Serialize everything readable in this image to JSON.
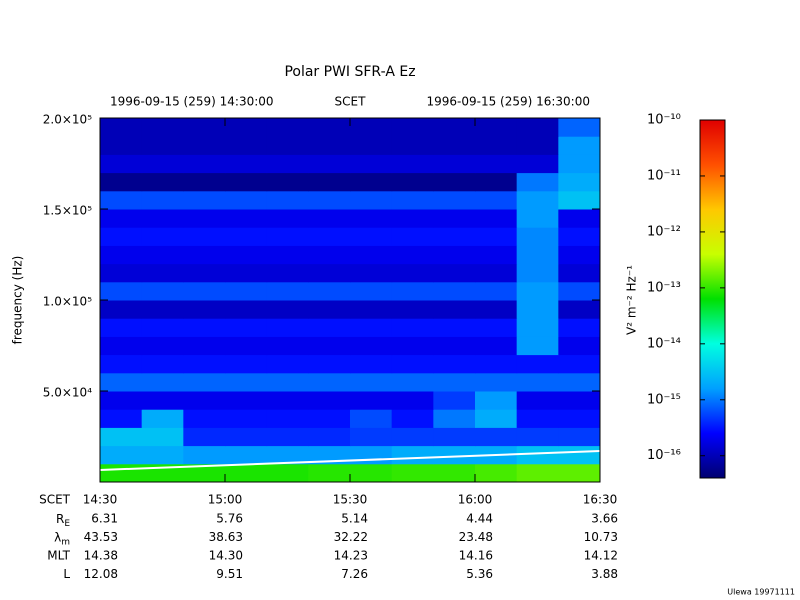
{
  "chart_data": {
    "type": "spectrogram",
    "title": "Polar PWI SFR-A Ez",
    "header": {
      "start": "1996-09-15 (259) 14:30:00",
      "scale": "SCET",
      "end": "1996-09-15 (259) 16:30:00"
    },
    "ylabel": "frequency (Hz)",
    "xlim": [
      "14:30",
      "16:30"
    ],
    "xticks": [
      "14:30",
      "15:00",
      "15:30",
      "16:00",
      "16:30"
    ],
    "ylim": [
      0,
      200000
    ],
    "yticks": [
      {
        "value": 50000,
        "label": "5.0×10⁴"
      },
      {
        "value": 100000,
        "label": "1.0×10⁵"
      },
      {
        "value": 150000,
        "label": "1.5×10⁵"
      },
      {
        "value": 200000,
        "label": "2.0×10⁵"
      }
    ],
    "z": [
      [
        8e-14,
        8e-14,
        8e-14,
        8e-14,
        8e-14,
        9e-14,
        9e-14,
        1e-13,
        1e-13,
        1.2e-13,
        1.5e-13,
        1.5e-13
      ],
      [
        2e-15,
        2e-15,
        1.5e-15,
        1.5e-15,
        1.5e-15,
        1.5e-15,
        1.5e-15,
        2e-15,
        2e-15,
        2e-15,
        3e-15,
        3e-15
      ],
      [
        3e-15,
        3e-15,
        4e-16,
        4e-16,
        4e-16,
        4e-16,
        5e-16,
        5e-16,
        5e-16,
        5e-16,
        5e-16,
        5e-16
      ],
      [
        3e-16,
        2e-15,
        3e-16,
        3e-16,
        3e-16,
        3e-16,
        6e-16,
        3e-16,
        1e-15,
        2e-15,
        3e-16,
        3e-16
      ],
      [
        2e-16,
        2e-16,
        2e-16,
        2e-16,
        2e-16,
        2e-16,
        2e-16,
        2e-16,
        5e-16,
        1.5e-15,
        2e-16,
        2e-16
      ],
      [
        8e-16,
        8e-16,
        8e-16,
        8e-16,
        8e-16,
        8e-16,
        8e-16,
        8e-16,
        8e-16,
        8e-16,
        8e-16,
        8e-16
      ],
      [
        3e-16,
        3e-16,
        3e-16,
        3e-16,
        3e-16,
        3e-16,
        3e-16,
        3e-16,
        3e-16,
        3e-16,
        3e-16,
        3e-16
      ],
      [
        2e-16,
        2e-16,
        2e-16,
        2e-16,
        2e-16,
        2e-16,
        2e-16,
        2e-16,
        2e-16,
        2e-16,
        1.5e-15,
        2e-16
      ],
      [
        3e-16,
        3e-16,
        3e-16,
        3e-16,
        3e-16,
        3e-16,
        3e-16,
        3e-16,
        3e-16,
        3e-16,
        1.5e-15,
        3e-16
      ],
      [
        1.2e-16,
        1.2e-16,
        1.2e-16,
        1.2e-16,
        1.2e-16,
        1.2e-16,
        1.2e-16,
        1.2e-16,
        1.2e-16,
        1.2e-16,
        1.5e-15,
        1.2e-16
      ],
      [
        6e-16,
        6e-16,
        6e-16,
        6e-16,
        6e-16,
        6e-16,
        6e-16,
        6e-16,
        6e-16,
        6e-16,
        1.5e-15,
        6e-16
      ],
      [
        1.5e-16,
        1.5e-16,
        1.5e-16,
        1.5e-16,
        1.5e-16,
        1.5e-16,
        1.5e-16,
        1.5e-16,
        1.5e-16,
        1.5e-16,
        1.2e-15,
        1.5e-16
      ],
      [
        2e-16,
        2e-16,
        2e-16,
        2e-16,
        2e-16,
        2e-16,
        2e-16,
        2e-16,
        2e-16,
        2e-16,
        1.2e-15,
        2e-16
      ],
      [
        3e-16,
        3e-16,
        3e-16,
        3e-16,
        3e-16,
        3e-16,
        3e-16,
        3e-16,
        3e-16,
        3e-16,
        1.2e-15,
        3e-16
      ],
      [
        2e-16,
        2e-16,
        2e-16,
        2e-16,
        2e-16,
        2e-16,
        2e-16,
        2e-16,
        2e-16,
        2e-16,
        1.5e-15,
        2e-16
      ],
      [
        6e-16,
        6e-16,
        6e-16,
        6e-16,
        6e-16,
        6e-16,
        6e-16,
        6e-16,
        6e-16,
        6e-16,
        1.5e-15,
        3e-15
      ],
      [
        6e-17,
        6e-17,
        6e-17,
        6e-17,
        6e-17,
        6e-17,
        6e-17,
        6e-17,
        6e-17,
        6e-17,
        1e-15,
        2e-15
      ],
      [
        1.5e-16,
        1.5e-16,
        1.5e-16,
        1.5e-16,
        1.5e-16,
        1.5e-16,
        1.5e-16,
        1.5e-16,
        1.5e-16,
        1.5e-16,
        1.5e-16,
        1.5e-15
      ],
      [
        1e-16,
        1e-16,
        1e-16,
        1e-16,
        1e-16,
        1e-16,
        1e-16,
        1e-16,
        1e-16,
        1e-16,
        1e-16,
        1.5e-15
      ],
      [
        1e-16,
        1e-16,
        1e-16,
        1e-16,
        1e-16,
        1e-16,
        1e-16,
        1e-16,
        1e-16,
        1e-16,
        1e-16,
        8e-16
      ]
    ],
    "overlay": {
      "x": [
        "14:30",
        "16:30"
      ],
      "values": [
        6600,
        17000
      ],
      "color": "#ffffff"
    },
    "colorbar": {
      "label": "V² m⁻² Hz⁻¹",
      "lim": [
        4e-17,
        1e-10
      ],
      "log": true,
      "ticks": [
        {
          "value": 1e-16,
          "label": "10⁻¹⁶"
        },
        {
          "value": 1e-15,
          "label": "10⁻¹⁵"
        },
        {
          "value": 1e-14,
          "label": "10⁻¹⁴"
        },
        {
          "value": 1e-13,
          "label": "10⁻¹³"
        },
        {
          "value": 1e-12,
          "label": "10⁻¹²"
        },
        {
          "value": 1e-11,
          "label": "10⁻¹¹"
        },
        {
          "value": 1e-10,
          "label": "10⁻¹⁰"
        }
      ],
      "colormap": [
        "#000070",
        "#0000ff",
        "#00a0ff",
        "#00ffe0",
        "#00e000",
        "#c8ff00",
        "#ffc800",
        "#ff5000",
        "#e00000"
      ]
    }
  },
  "ephemeris": {
    "time_label": "SCET",
    "rows": [
      {
        "label": {
          "text": "R",
          "sub": "E"
        },
        "values": [
          "6.31",
          "5.76",
          "5.14",
          "4.44",
          "3.66"
        ]
      },
      {
        "label": {
          "text": "λ",
          "sub": "m"
        },
        "values": [
          "43.53",
          "38.63",
          "32.22",
          "23.48",
          "10.73"
        ]
      },
      {
        "label": "MLT",
        "values": [
          "14.38",
          "14.30",
          "14.23",
          "14.16",
          "14.12"
        ]
      },
      {
        "label": "L",
        "values": [
          "12.08",
          "9.51",
          "7.26",
          "5.36",
          "3.88"
        ]
      }
    ]
  },
  "credit": "Ulewa 19971111"
}
